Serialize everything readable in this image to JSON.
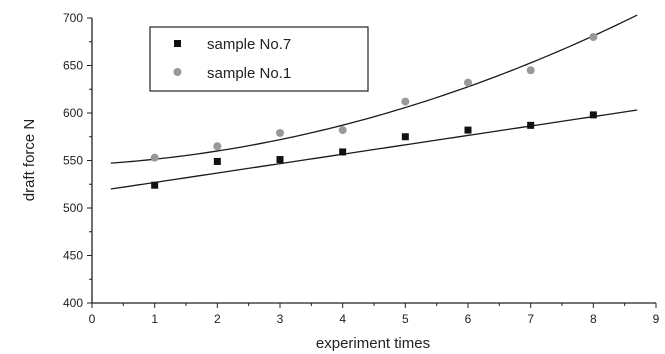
{
  "chart_data": {
    "type": "scatter",
    "xlabel": "experiment times",
    "ylabel": "draft force  N",
    "xlim": [
      0,
      9
    ],
    "ylim": [
      400,
      700
    ],
    "xticks": [
      0,
      1,
      2,
      3,
      4,
      5,
      6,
      7,
      8,
      9
    ],
    "yticks": [
      400,
      450,
      500,
      550,
      600,
      650,
      700
    ],
    "legend_position": "top-left",
    "grid": false,
    "series": [
      {
        "name": "sample No.7",
        "marker": "square",
        "color": "#111111",
        "x": [
          1,
          2,
          3,
          4,
          5,
          6,
          7,
          8
        ],
        "y": [
          524,
          549,
          551,
          559,
          575,
          582,
          587,
          598
        ],
        "fit": {
          "type": "linear",
          "x_range": [
            0.3,
            8.7
          ],
          "coef": [
            517,
            9.9
          ]
        }
      },
      {
        "name": "sample No.1",
        "marker": "circle",
        "color": "#999999",
        "x": [
          1,
          2,
          3,
          4,
          5,
          6,
          7,
          8
        ],
        "y": [
          553,
          565,
          579,
          582,
          612,
          632,
          645,
          680
        ],
        "fit": {
          "type": "quadratic",
          "x_range": [
            0.3,
            8.7
          ],
          "coef": [
            546,
            3.7,
            1.65
          ]
        }
      }
    ]
  }
}
